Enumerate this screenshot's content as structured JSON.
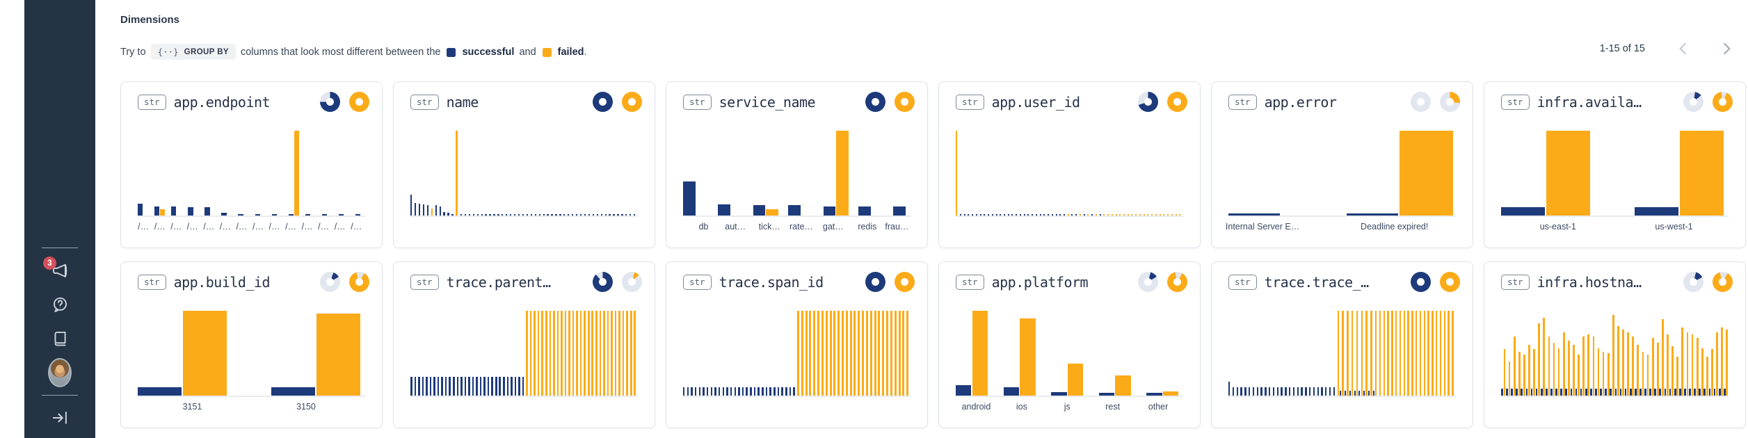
{
  "sidebar": {
    "badge_count": "3"
  },
  "header": {
    "title": "Dimensions",
    "hint": {
      "prefix": "Try to",
      "group_by_icon": "{··}",
      "group_by_label": "GROUP BY",
      "middle": "columns that look most different between the",
      "successful": "successful",
      "and": "and",
      "failed": "failed",
      "suffix": "."
    },
    "pagination": {
      "label": "1-15 of 15"
    }
  },
  "colors": {
    "navy": "#1d3a7a",
    "orange": "#fbab18",
    "ring": "#e2e6ee",
    "sidebar_bg": "#253444",
    "badge_red": "#d4505c"
  },
  "cards": [
    {
      "type": "str",
      "name": "app.endpoint",
      "donuts": [
        {
          "pct": 75,
          "from": 0
        },
        {
          "pct": 100,
          "from": 0
        }
      ],
      "bars": [
        [
          "n",
          14,
          2.2,
          5
        ],
        [
          "n",
          11,
          2.2,
          0.2
        ],
        [
          "o",
          7,
          2.2,
          2.6
        ],
        [
          "n",
          11,
          2.2,
          5
        ],
        [
          "n",
          10,
          2.2,
          5
        ],
        [
          "n",
          10,
          2.2,
          5
        ],
        [
          "n",
          3,
          2.2,
          5
        ],
        [
          "n",
          2,
          2.2,
          5
        ],
        [
          "n",
          2,
          2.2,
          5
        ],
        [
          "n",
          2,
          2.2,
          5
        ],
        [
          "n",
          2,
          2.2,
          0.2
        ],
        [
          "o",
          100,
          2.2,
          2.6
        ],
        [
          "n",
          2,
          2.2,
          5
        ],
        [
          "n",
          2,
          2.2,
          5
        ],
        [
          "n",
          2,
          2.2,
          5
        ],
        [
          "n",
          2,
          2.2,
          2
        ]
      ],
      "labels": [
        {
          "t": "/…",
          "x": 2.5
        },
        {
          "t": "/…",
          "x": 9.7
        },
        {
          "t": "/…",
          "x": 16.9
        },
        {
          "t": "/…",
          "x": 24.1
        },
        {
          "t": "/…",
          "x": 31.3
        },
        {
          "t": "/…",
          "x": 38.5
        },
        {
          "t": "/…",
          "x": 45.7
        },
        {
          "t": "/…",
          "x": 52.9
        },
        {
          "t": "/…",
          "x": 60.1
        },
        {
          "t": "/…",
          "x": 67.3
        },
        {
          "t": "/…",
          "x": 74.5
        },
        {
          "t": "/…",
          "x": 81.7
        },
        {
          "t": "/…",
          "x": 88.9
        },
        {
          "t": "/…",
          "x": 96.1
        }
      ]
    },
    {
      "type": "str",
      "name": "name",
      "donuts": [
        {
          "pct": 100,
          "from": 0
        },
        {
          "pct": 100,
          "from": 0
        }
      ],
      "bars": [
        [
          "n",
          25,
          0.7,
          1.1
        ],
        [
          "n",
          15,
          0.7,
          1.1
        ],
        [
          "n",
          14,
          0.7,
          1.1
        ],
        [
          "n",
          13,
          0.7,
          1.1
        ],
        [
          "n",
          12,
          0.7,
          1.1
        ],
        [
          "o",
          8,
          0.7,
          1.1
        ],
        [
          "n",
          12,
          0.7,
          1.1
        ],
        [
          "n",
          11,
          0.7,
          1.1
        ],
        [
          "n",
          4,
          0.7,
          1.1
        ],
        [
          "n",
          3,
          0.7,
          1.1
        ],
        [
          "n",
          2,
          0.7,
          1.1
        ],
        [
          "o",
          100,
          0.9,
          1.1
        ],
        {
          "r": 43,
          "b": [
            "n",
            2,
            0.7,
            1.1
          ]
        }
      ],
      "labels": []
    },
    {
      "type": "str",
      "name": "service_name",
      "donuts": [
        {
          "pct": 100,
          "from": 0
        },
        {
          "pct": 100,
          "from": 0
        }
      ],
      "bars": [
        [
          "n",
          40,
          5,
          9.3
        ],
        [
          "n",
          13,
          5,
          9.3
        ],
        [
          "n",
          12,
          5,
          0.3
        ],
        [
          "o",
          7,
          5,
          4
        ],
        [
          "n",
          12,
          5,
          9.3
        ],
        [
          "n",
          11,
          5,
          0.3
        ],
        [
          "o",
          100,
          5,
          4
        ],
        [
          "n",
          11,
          5,
          9.3
        ],
        [
          "n",
          11,
          5,
          2
        ]
      ],
      "labels": [
        {
          "t": "db",
          "x": 9
        },
        {
          "t": "aut…",
          "x": 23
        },
        {
          "t": "tick…",
          "x": 38
        },
        {
          "t": "rate…",
          "x": 52
        },
        {
          "t": "gat…",
          "x": 66
        },
        {
          "t": "redis",
          "x": 81
        },
        {
          "t": "frau…",
          "x": 94
        }
      ]
    },
    {
      "type": "str",
      "name": "app.user_id",
      "donuts": [
        {
          "pct": 70,
          "from": 0
        },
        {
          "pct": 100,
          "from": 0
        }
      ],
      "bars": [
        [
          "o",
          100,
          0.6,
          1
        ],
        {
          "r": 25,
          "b": [
            "n",
            2,
            0.55,
            1
          ]
        },
        [
          "n",
          2,
          0.55,
          1
        ],
        [
          "n",
          2,
          0.55,
          1
        ],
        [
          "o",
          2,
          0.55,
          1
        ],
        [
          "n",
          2,
          0.55,
          1
        ],
        [
          "n",
          2,
          0.55,
          1
        ],
        [
          "o",
          2,
          0.55,
          1
        ],
        [
          "n",
          2,
          0.55,
          1
        ],
        [
          "o",
          2,
          0.55,
          1
        ],
        [
          "n",
          2,
          0.55,
          1
        ],
        [
          "o",
          2,
          0.55,
          1
        ],
        [
          "n",
          2,
          0.55,
          1
        ],
        [
          "o",
          2,
          0.55,
          1
        ],
        {
          "r": 19,
          "b": [
            "o",
            2,
            0.55,
            1
          ]
        }
      ],
      "labels": []
    },
    {
      "type": "str",
      "name": "app.error",
      "donuts": [
        {
          "pct": 0,
          "from": 0
        },
        {
          "pct": 27,
          "from": 0
        }
      ],
      "bars": [
        [
          "n",
          2.5,
          19,
          25
        ],
        [
          "n",
          2.5,
          19,
          0.5
        ],
        [
          "o",
          100,
          20,
          1
        ]
      ],
      "labels": [
        {
          "t": "Internal Server E…",
          "x": 15
        },
        {
          "t": "Deadline expired!",
          "x": 73
        }
      ]
    },
    {
      "type": "str",
      "name": "infra.availa…",
      "donuts": [
        {
          "pct": 11,
          "from": 10
        },
        {
          "pct": 91,
          "from": 25
        }
      ],
      "bars": [
        [
          "n",
          10,
          19,
          0.5
        ],
        [
          "o",
          100,
          19,
          19
        ],
        [
          "n",
          10,
          19,
          0.5
        ],
        [
          "o",
          100,
          19,
          2
        ]
      ],
      "labels": [
        {
          "t": "us-east-1",
          "x": 25
        },
        {
          "t": "us-west-1",
          "x": 76
        }
      ]
    },
    {
      "type": "str",
      "name": "app.build_id",
      "donuts": [
        {
          "pct": 11,
          "from": 20
        },
        {
          "pct": 87,
          "from": 30
        }
      ],
      "bars": [
        [
          "n",
          10,
          19,
          0.5
        ],
        [
          "o",
          100,
          19,
          19
        ],
        [
          "n",
          10,
          19,
          0.5
        ],
        [
          "o",
          97,
          19,
          2
        ]
      ],
      "labels": [
        {
          "t": "3151",
          "x": 24
        },
        {
          "t": "3150",
          "x": 74
        }
      ]
    },
    {
      "type": "str",
      "name": "trace.parent…",
      "donuts": [
        {
          "pct": 88,
          "from": 0
        },
        {
          "pct": 8,
          "from": 15
        }
      ],
      "bars": [
        {
          "r": 30,
          "b": [
            "n",
            22,
            0.8,
            0.9
          ]
        },
        {
          "r": 29,
          "b": [
            "o",
            100,
            0.8,
            0.9
          ]
        }
      ],
      "labels": []
    },
    {
      "type": "str",
      "name": "trace.span_id",
      "donuts": [
        {
          "pct": 100,
          "from": 0
        },
        {
          "pct": 100,
          "from": 0
        }
      ],
      "bars": [
        {
          "r": 29,
          "b": [
            "n",
            10,
            0.75,
            0.95
          ]
        },
        {
          "r": 28,
          "b": [
            "o",
            100,
            0.9,
            0.85
          ]
        }
      ],
      "labels": []
    },
    {
      "type": "str",
      "name": "app.platform",
      "donuts": [
        {
          "pct": 12,
          "from": 15
        },
        {
          "pct": 88,
          "from": 30
        }
      ],
      "bars": [
        [
          "n",
          12,
          6.5,
          0.3
        ],
        [
          "o",
          100,
          6.5,
          6.5
        ],
        [
          "n",
          10,
          6.5,
          0.3
        ],
        [
          "o",
          91,
          6.5,
          6.5
        ],
        [
          "n",
          4,
          6.5,
          0.3
        ],
        [
          "o",
          38,
          6.5,
          6.5
        ],
        [
          "n",
          3,
          6.5,
          0.3
        ],
        [
          "o",
          24,
          6.5,
          6.5
        ],
        [
          "n",
          3,
          6.5,
          0.3
        ],
        [
          "o",
          5,
          6.5,
          2
        ]
      ],
      "labels": [
        {
          "t": "android",
          "x": 9
        },
        {
          "t": "ios",
          "x": 29
        },
        {
          "t": "js",
          "x": 49
        },
        {
          "t": "rest",
          "x": 69
        },
        {
          "t": "other",
          "x": 89
        }
      ]
    },
    {
      "type": "str",
      "name": "trace.trace_…",
      "donuts": [
        {
          "pct": 100,
          "from": 0
        },
        {
          "pct": 100,
          "from": 0
        }
      ],
      "bars": [
        [
          "n",
          16,
          0.7,
          1
        ],
        {
          "r": 26,
          "b": [
            "n",
            10,
            0.7,
            1
          ]
        },
        [
          "o",
          100,
          0.7,
          0.35
        ],
        [
          "n",
          6,
          0.6,
          0.35
        ],
        [
          "o",
          100,
          0.7,
          0.35
        ],
        [
          "n",
          6,
          0.6,
          0.35
        ],
        [
          "o",
          100,
          0.7,
          0.35
        ],
        [
          "n",
          6,
          0.6,
          0.35
        ],
        [
          "o",
          100,
          0.7,
          0.35
        ],
        [
          "n",
          6,
          0.6,
          0.35
        ],
        [
          "o",
          100,
          0.7,
          0.35
        ],
        [
          "n",
          6,
          0.6,
          0.35
        ],
        [
          "o",
          100,
          0.7,
          0.35
        ],
        [
          "n",
          6,
          0.6,
          0.35
        ],
        [
          "o",
          100,
          0.7,
          0.35
        ],
        [
          "n",
          6,
          0.6,
          0.35
        ],
        [
          "o",
          100,
          0.7,
          0.35
        ],
        [
          "n",
          6,
          0.6,
          0.35
        ],
        {
          "r": 20,
          "b": [
            "o",
            100,
            0.7,
            1
          ]
        }
      ],
      "labels": []
    },
    {
      "type": "str",
      "name": "infra.hostna…",
      "donuts": [
        {
          "pct": 13,
          "from": 15
        },
        {
          "pct": 87,
          "from": 30
        }
      ],
      "bars": [
        {
          "comb": {
            "dash": 8,
            "w": 0.85,
            "g": 0.25,
            "hs": [
              55,
              40,
              70,
              52,
              48,
              60,
              55,
              85,
              92,
              70,
              62,
              56,
              75,
              65,
              60,
              48,
              70,
              72,
              70,
              56,
              52,
              50,
              95,
              82,
              78,
              75,
              70,
              60,
              52,
              48,
              68,
              62,
              90,
              72,
              58,
              46,
              80,
              75,
              72,
              68,
              56,
              46,
              55,
              75,
              80,
              78
            ]
          }
        }
      ],
      "labels": []
    }
  ]
}
